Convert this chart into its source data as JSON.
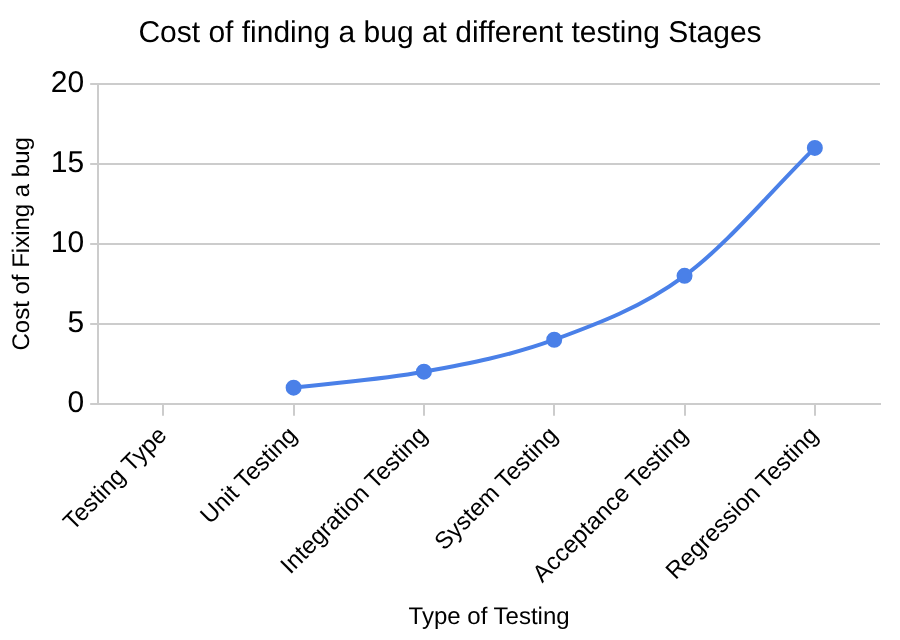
{
  "chart_data": {
    "type": "line",
    "title": "Cost of finding a bug at different testing Stages",
    "xlabel": "Type of Testing",
    "ylabel": "Cost of Fixing a bug",
    "categories": [
      "Testing Type",
      "Unit Testing",
      "Integration Testing",
      "System Testing",
      "Acceptance Testing",
      "Regression Testing"
    ],
    "values": [
      null,
      1,
      2,
      4,
      8,
      16
    ],
    "color": "#4a80e8",
    "ylim": [
      0,
      20
    ],
    "yticks": [
      0,
      5,
      10,
      15,
      20
    ],
    "grid": "y",
    "legend": false,
    "marker": "circle",
    "line_style": "solid"
  }
}
